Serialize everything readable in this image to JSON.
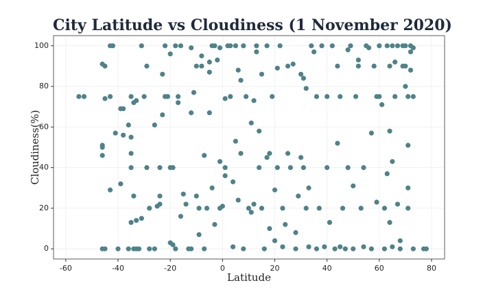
{
  "chart_data": {
    "type": "scatter",
    "title": "City Latitude vs Cloudiness (1 November 2020)",
    "x_label": "Latitude",
    "y_label": "Cloudiness(%)",
    "color": "#4f8289",
    "grid": true,
    "xlim": [
      -64.7,
      85
    ],
    "ylim": [
      -5,
      105
    ],
    "xticks": [
      -60,
      -40,
      -20,
      0,
      20,
      40,
      60,
      80
    ],
    "yticks": [
      0,
      20,
      40,
      60,
      80,
      100
    ],
    "x": [
      -55,
      -53,
      -46,
      -45,
      -46,
      -46,
      -46,
      -45,
      -46,
      -45,
      -43,
      -42,
      -43,
      -43,
      -41,
      -40,
      -39,
      -38,
      -39,
      -38,
      -36,
      -35,
      -35,
      -35,
      -34,
      -33,
      -35,
      -35,
      -33,
      -34,
      -36,
      -34,
      -33,
      -32,
      -31,
      -30,
      -31,
      -29,
      -29,
      -28,
      -28,
      -26,
      -26,
      -25,
      -24,
      -24,
      -24,
      -23,
      -22,
      -23,
      -22,
      -21,
      -20,
      -20,
      -19,
      -20,
      -19,
      -18,
      -18,
      -17,
      -16,
      -17,
      -16,
      -15,
      -14,
      -13,
      -12,
      -12,
      -12,
      -11,
      -10,
      -10,
      -9,
      -9,
      -8,
      -8,
      -7,
      -7,
      -6,
      -5,
      -5,
      -4,
      -5,
      -4,
      -3,
      -3,
      -2,
      -1,
      -1,
      -1,
      0,
      1,
      1,
      1,
      2,
      3,
      4,
      4,
      3,
      5,
      5,
      6,
      6,
      7,
      7,
      8,
      8,
      9,
      10,
      11,
      11,
      12,
      12,
      13,
      13,
      14,
      14,
      15,
      15,
      16,
      17,
      17,
      18,
      18,
      19,
      20,
      20,
      21,
      21,
      22,
      23,
      23,
      24,
      25,
      25,
      26,
      27,
      28,
      28,
      29,
      30,
      30,
      31,
      31,
      32,
      32,
      33,
      33,
      34,
      35,
      36,
      36,
      37,
      38,
      39,
      40,
      40,
      41,
      42,
      43,
      44,
      44,
      45,
      45,
      46,
      47,
      48,
      48,
      49,
      50,
      50,
      51,
      52,
      52,
      53,
      54,
      54,
      55,
      56,
      57,
      57,
      58,
      59,
      59,
      60,
      60,
      61,
      62,
      62,
      63,
      64,
      64,
      65,
      65,
      66,
      66,
      67,
      68,
      68,
      69,
      70,
      70,
      71,
      71,
      72,
      72,
      73,
      73,
      64,
      73,
      72,
      71,
      65,
      69,
      63,
      78,
      70,
      71,
      67,
      77
    ],
    "y": [
      75,
      75,
      91,
      90,
      51,
      50,
      46,
      74,
      0,
      0,
      100,
      100,
      75,
      29,
      57,
      0,
      69,
      69,
      32,
      56,
      61,
      55,
      47,
      75,
      72,
      73,
      40,
      13,
      14,
      26,
      0,
      0,
      0,
      0,
      100,
      75,
      15,
      90,
      40,
      20,
      0,
      0,
      61,
      21,
      22,
      26,
      40,
      86,
      100,
      66,
      75,
      75,
      96,
      40,
      40,
      3,
      2,
      0,
      100,
      72,
      100,
      75,
      16,
      27,
      22,
      0,
      0,
      99,
      67,
      77,
      90,
      26,
      7,
      20,
      90,
      95,
      46,
      0,
      20,
      87,
      92,
      100,
      67,
      30,
      12,
      100,
      93,
      20,
      43,
      99,
      21,
      74,
      40,
      36,
      100,
      100,
      33,
      1,
      75,
      100,
      53,
      24,
      88,
      47,
      83,
      100,
      0,
      75,
      20,
      62,
      18,
      22,
      73,
      100,
      97,
      40,
      58,
      86,
      20,
      0,
      100,
      45,
      47,
      10,
      75,
      29,
      4,
      89,
      40,
      100,
      20,
      1,
      12,
      47,
      90,
      40,
      91,
      8,
      0,
      26,
      86,
      45,
      84,
      40,
      79,
      20,
      1,
      30,
      100,
      97,
      0,
      75,
      20,
      100,
      1,
      75,
      40,
      13,
      100,
      0,
      52,
      90,
      1,
      75,
      20,
      0,
      40,
      98,
      100,
      31,
      0,
      75,
      90,
      93,
      20,
      1,
      40,
      100,
      99,
      57,
      0,
      90,
      75,
      23,
      100,
      75,
      71,
      20,
      0,
      100,
      90,
      58,
      1,
      100,
      92,
      75,
      22,
      0,
      4,
      100,
      90,
      80,
      51,
      30,
      100,
      88,
      0,
      75,
      13,
      99,
      97,
      75,
      43,
      90,
      37,
      0,
      100,
      20,
      100,
      0
    ]
  }
}
